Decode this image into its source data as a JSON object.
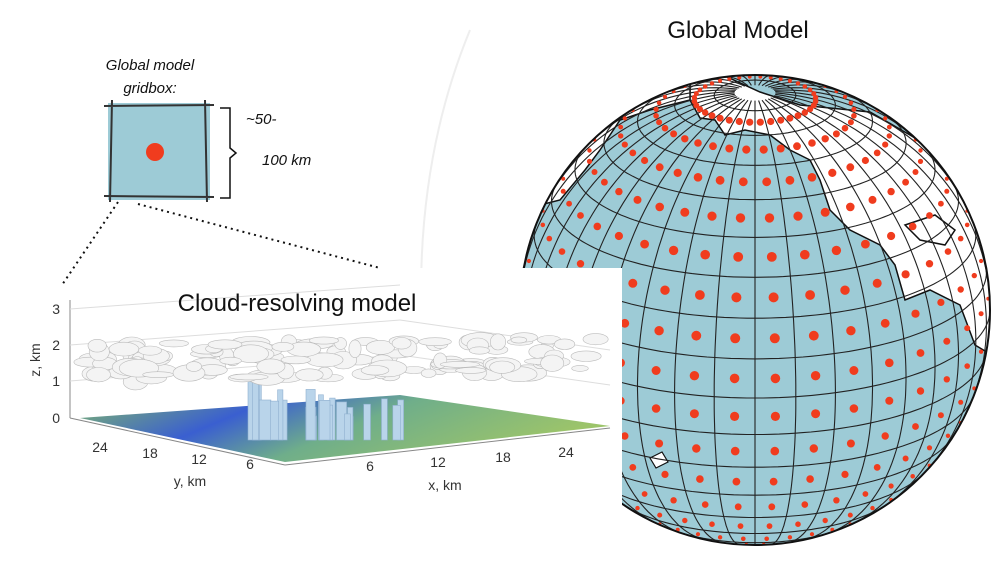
{
  "title": "Global Model",
  "gridbox": {
    "label_lines": [
      "Global model",
      "gridbox:"
    ],
    "size_lines": [
      "~50-",
      "100 km"
    ]
  },
  "cloud_panel": {
    "title": "Cloud-resolving model",
    "z_axis": {
      "label": "z, km",
      "ticks": [
        0,
        1,
        2,
        3
      ]
    },
    "y_axis": {
      "label": "y, km",
      "ticks": [
        24,
        18,
        12,
        6
      ]
    },
    "x_axis": {
      "label": "x, km",
      "ticks": [
        6,
        12,
        18,
        24
      ]
    }
  }
}
